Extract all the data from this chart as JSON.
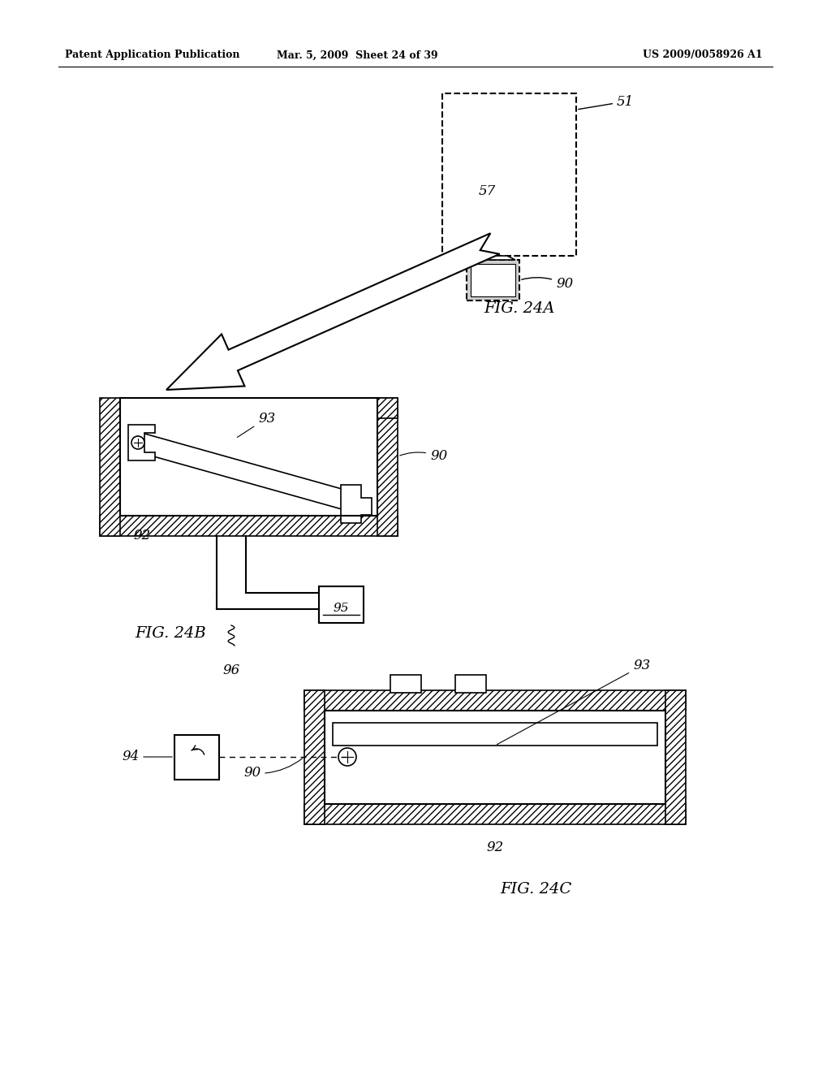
{
  "bg_color": "#ffffff",
  "header_left": "Patent Application Publication",
  "header_mid": "Mar. 5, 2009  Sheet 24 of 39",
  "header_right": "US 2009/0058926 A1",
  "fig24a_label": "FIG. 24A",
  "fig24b_label": "FIG. 24B",
  "fig24c_label": "FIG. 24C",
  "line_color": "#000000",
  "line_width": 1.5
}
